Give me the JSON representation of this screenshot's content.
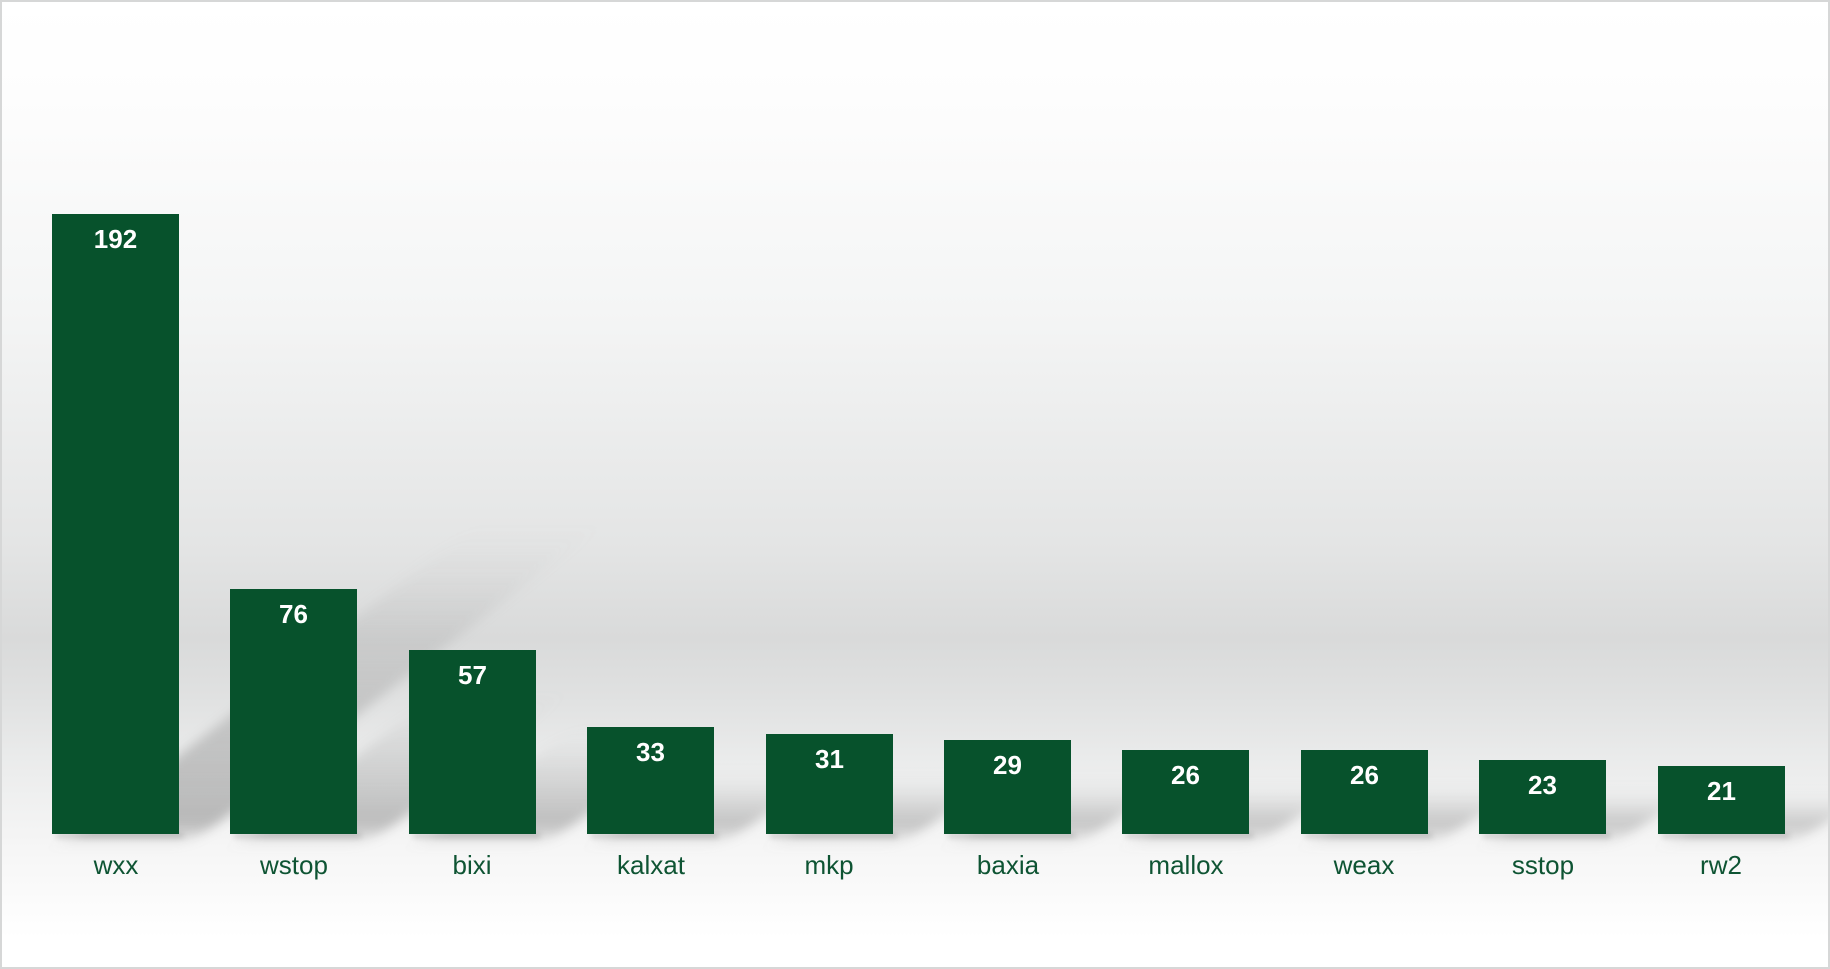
{
  "window": {
    "border_color": "#d6d7d7",
    "background_top_color": "#ffffff",
    "background_mid_color": "#d9dada",
    "background_bottom_color": "#ffffff"
  },
  "chart_data": {
    "type": "bar",
    "title": "",
    "xlabel": "",
    "ylabel": "",
    "categories": [
      "wxx",
      "wstop",
      "bixi",
      "kalxat",
      "mkp",
      "baxia",
      "mallox",
      "weax",
      "sstop",
      "rw2"
    ],
    "values": [
      192,
      76,
      57,
      33,
      31,
      29,
      26,
      26,
      23,
      21
    ],
    "ylim": [
      0,
      192
    ],
    "grid": false,
    "legend": "none",
    "axes_visible": false,
    "value_labels_position": "inside-top",
    "bar_color": "#07522C",
    "value_label_color": "#FFFFFF",
    "category_label_color": "#0E5433",
    "shadow_style": "perspective-lower-right"
  }
}
